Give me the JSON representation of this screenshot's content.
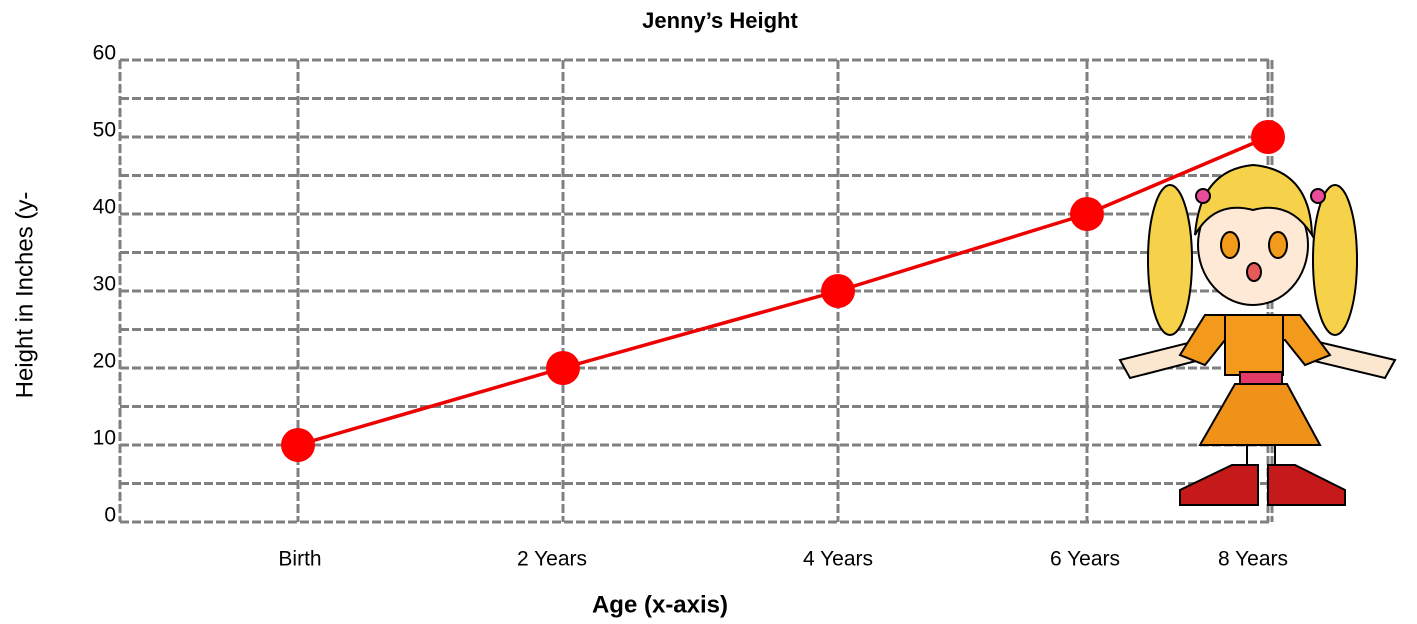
{
  "chart_data": {
    "type": "line",
    "title": "Jenny’s Height",
    "x_label": "Age (x-axis)",
    "y_label": "Height in Inches (y-",
    "categories": [
      "Birth",
      "2 Years",
      "4 Years",
      "6 Years",
      "8 Years"
    ],
    "values": [
      10,
      20,
      30,
      40,
      50
    ],
    "color": "#ee0000",
    "ylim": [
      0,
      60
    ],
    "yticks": [
      0,
      10,
      20,
      30,
      40,
      50,
      60
    ],
    "yminorticks": [
      5,
      15,
      25,
      35,
      45,
      55
    ],
    "grid": true
  }
}
